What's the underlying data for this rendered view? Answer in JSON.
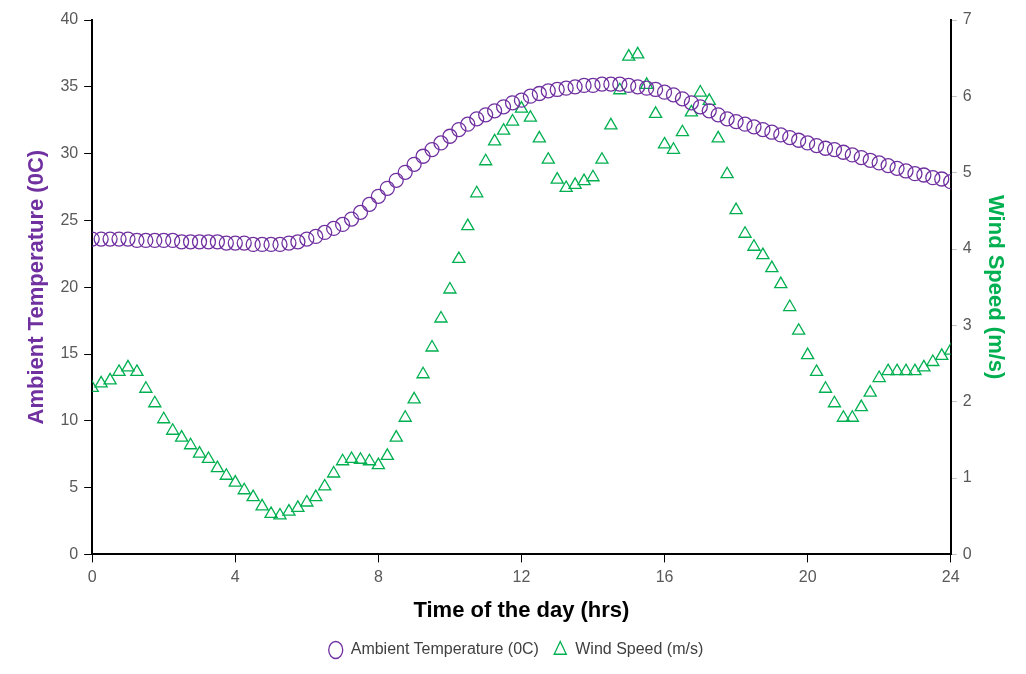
{
  "chart_data": {
    "type": "scatter",
    "xlabel": "Time of the day (hrs)",
    "ylabel": "Ambient Temperature (0C)",
    "y2label": "Wind Speed (m/s)",
    "x": [
      0,
      0.25,
      0.5,
      0.75,
      1,
      1.25,
      1.5,
      1.75,
      2,
      2.25,
      2.5,
      2.75,
      3,
      3.25,
      3.5,
      3.75,
      4,
      4.25,
      4.5,
      4.75,
      5,
      5.25,
      5.5,
      5.75,
      6,
      6.25,
      6.5,
      6.75,
      7,
      7.25,
      7.5,
      7.75,
      8,
      8.25,
      8.5,
      8.75,
      9,
      9.25,
      9.5,
      9.75,
      10,
      10.25,
      10.5,
      10.75,
      11,
      11.25,
      11.5,
      11.75,
      12,
      12.25,
      12.5,
      12.75,
      13,
      13.25,
      13.5,
      13.75,
      14,
      14.25,
      14.5,
      14.75,
      15,
      15.25,
      15.5,
      15.75,
      16,
      16.25,
      16.5,
      16.75,
      17,
      17.25,
      17.5,
      17.75,
      18,
      18.25,
      18.5,
      18.75,
      19,
      19.25,
      19.5,
      19.75,
      20,
      20.25,
      20.5,
      20.75,
      21,
      21.25,
      21.5,
      21.75,
      22,
      22.25,
      22.5,
      22.75,
      23,
      23.25,
      23.5,
      23.75,
      24
    ],
    "series": [
      {
        "name": "Ambient Temperature (0C)",
        "color": "#7030a0",
        "marker": "circle",
        "values": [
          23.6,
          23.6,
          23.6,
          23.6,
          23.6,
          23.5,
          23.5,
          23.5,
          23.5,
          23.5,
          23.4,
          23.4,
          23.4,
          23.4,
          23.4,
          23.3,
          23.3,
          23.3,
          23.2,
          23.2,
          23.2,
          23.2,
          23.3,
          23.4,
          23.6,
          23.8,
          24.1,
          24.4,
          24.7,
          25.1,
          25.6,
          26.2,
          26.8,
          27.4,
          28.0,
          28.6,
          29.2,
          29.8,
          30.3,
          30.8,
          31.3,
          31.8,
          32.2,
          32.6,
          32.9,
          33.2,
          33.5,
          33.8,
          34.0,
          34.3,
          34.5,
          34.7,
          34.8,
          34.9,
          35.0,
          35.1,
          35.1,
          35.2,
          35.2,
          35.2,
          35.1,
          35.0,
          34.9,
          34.8,
          34.6,
          34.4,
          34.1,
          33.8,
          33.5,
          33.2,
          32.9,
          32.6,
          32.4,
          32.2,
          32.0,
          31.8,
          31.6,
          31.4,
          31.2,
          31.0,
          30.8,
          30.6,
          30.4,
          30.3,
          30.1,
          29.9,
          29.7,
          29.5,
          29.3,
          29.1,
          28.9,
          28.7,
          28.5,
          28.4,
          28.2,
          28.1,
          27.9
        ]
      },
      {
        "name": "Wind Speed (m/s)",
        "color": "#00b050",
        "marker": "triangle",
        "axis": "y2",
        "values": [
          2.18,
          2.24,
          2.28,
          2.39,
          2.45,
          2.39,
          2.17,
          1.98,
          1.77,
          1.62,
          1.53,
          1.43,
          1.32,
          1.25,
          1.13,
          1.03,
          0.94,
          0.84,
          0.75,
          0.63,
          0.53,
          0.51,
          0.56,
          0.61,
          0.68,
          0.75,
          0.89,
          1.06,
          1.22,
          1.25,
          1.24,
          1.22,
          1.17,
          1.29,
          1.53,
          1.79,
          2.03,
          2.36,
          2.71,
          3.09,
          3.47,
          3.87,
          4.3,
          4.73,
          5.15,
          5.41,
          5.55,
          5.67,
          5.84,
          5.72,
          5.45,
          5.17,
          4.91,
          4.8,
          4.84,
          4.89,
          4.94,
          5.17,
          5.62,
          6.08,
          6.52,
          6.55,
          6.15,
          5.77,
          5.37,
          5.3,
          5.53,
          5.79,
          6.05,
          5.94,
          5.45,
          4.98,
          4.51,
          4.2,
          4.03,
          3.92,
          3.75,
          3.54,
          3.24,
          2.93,
          2.61,
          2.39,
          2.17,
          1.98,
          1.79,
          1.79,
          1.93,
          2.12,
          2.31,
          2.4,
          2.4,
          2.4,
          2.4,
          2.45,
          2.52,
          2.6,
          2.67
        ]
      }
    ],
    "xlim": [
      0,
      24
    ],
    "xticks": [
      0,
      4,
      8,
      12,
      16,
      20,
      24
    ],
    "ylim": [
      0,
      40
    ],
    "yticks": [
      0,
      5,
      10,
      15,
      20,
      25,
      30,
      35,
      40
    ],
    "y2lim": [
      0,
      7
    ],
    "y2ticks": [
      0,
      1,
      2,
      3,
      4,
      5,
      6,
      7
    ],
    "grid": false,
    "legend": "bottom"
  }
}
